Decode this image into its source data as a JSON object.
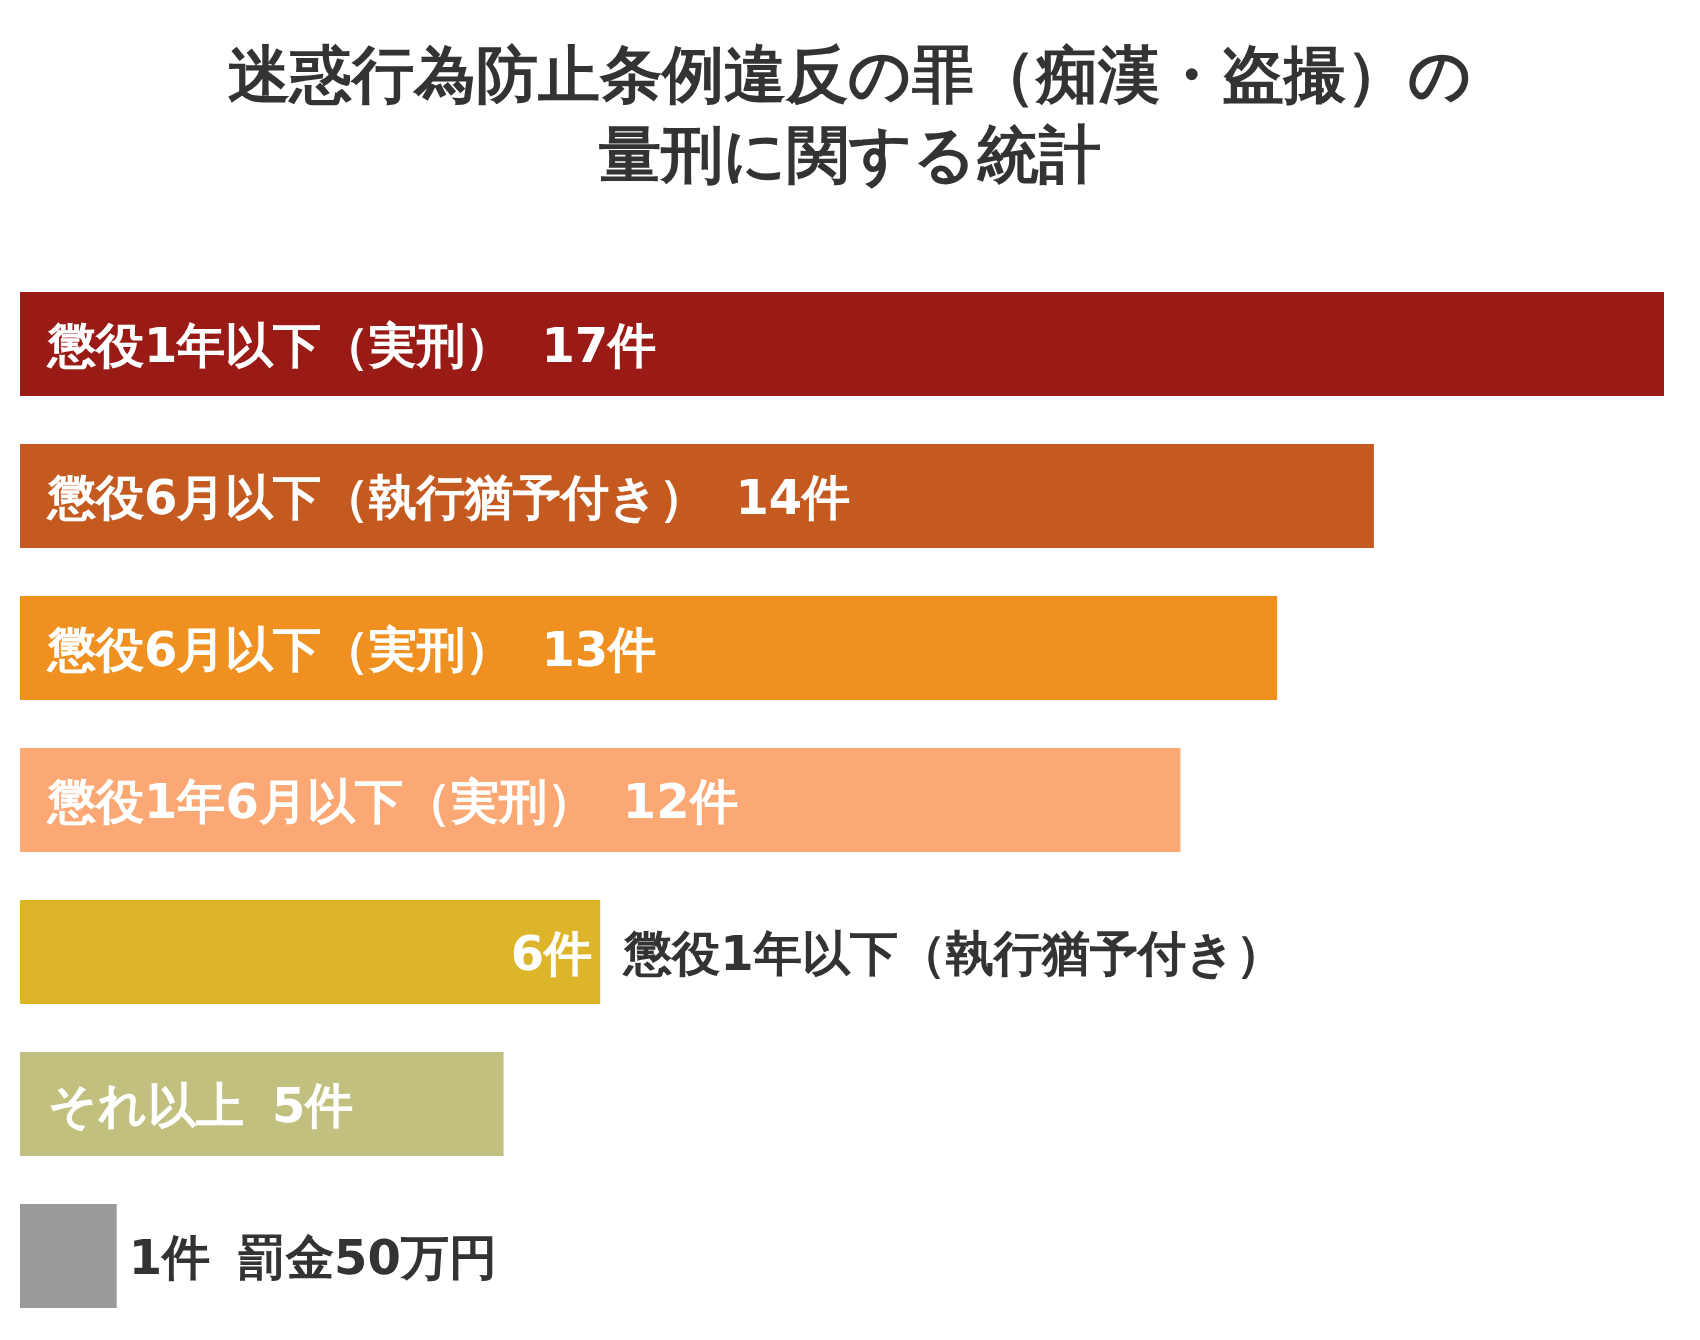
{
  "chart_data": {
    "type": "bar",
    "orientation": "horizontal",
    "title": "迷惑行為防止条例違反の罪（痴漢・盗撮）の量刑に関する統計",
    "categories": [
      "懲役1年以下（実刑）",
      "懲役6月以下（執行猶予付き）",
      "懲役6月以下（実刑）",
      "懲役1年6月以下（実刑）",
      "懲役1年以下（執行猶予付き）",
      "それ以上",
      "罰金50万円"
    ],
    "values": [
      17,
      14,
      13,
      12,
      6,
      5,
      1
    ],
    "value_labels": [
      "17件",
      "14件",
      "13件",
      "12件",
      "6件",
      "5件",
      "1件"
    ],
    "colors": [
      "#9a1a15",
      "#c55a21",
      "#ef9020",
      "#fba874",
      "#dcb52b",
      "#c1c07f",
      "#9a9a9a"
    ]
  }
}
